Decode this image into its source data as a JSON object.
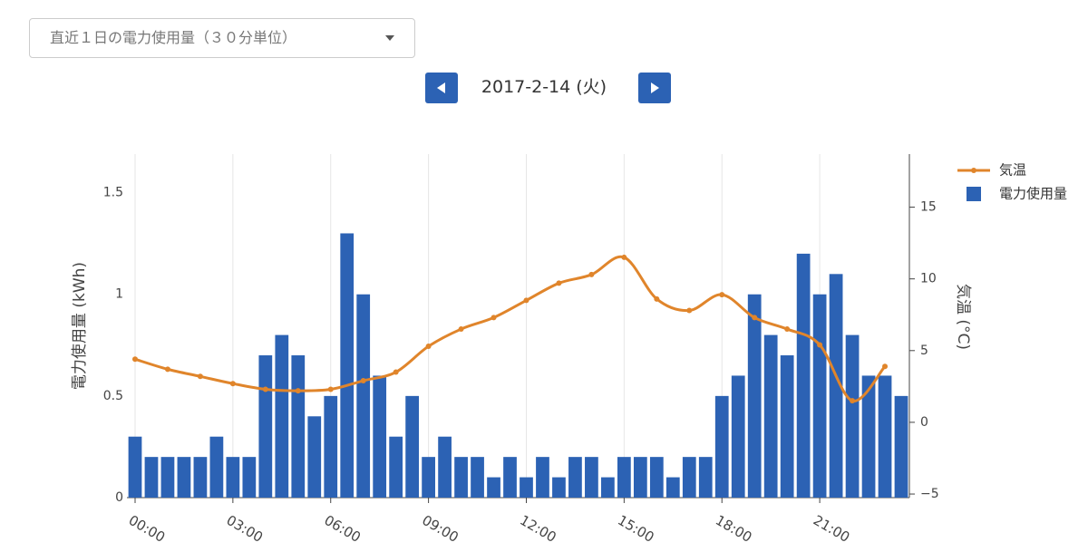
{
  "ui": {
    "dropdown": "直近１日の電力使用量（３０分単位）",
    "date": "2017-2-14 (火)"
  },
  "chart_data": {
    "type": "bar-line",
    "x_axis_ticks_note": null,
    "xlim": [
      -0.25,
      23.75
    ],
    "xticks": [
      {
        "value": 0,
        "label": "00:00"
      },
      {
        "value": 3,
        "label": "03:00"
      },
      {
        "value": 6,
        "label": "06:00"
      },
      {
        "value": 9,
        "label": "09:00"
      },
      {
        "value": 12,
        "label": "12:00"
      },
      {
        "value": 15,
        "label": "15:00"
      },
      {
        "value": 18,
        "label": "18:00"
      },
      {
        "value": 21,
        "label": "21:00"
      }
    ],
    "ylabel": "電力使用量 (kWh)",
    "ylim": [
      0,
      1.69
    ],
    "yticks": [
      0,
      0.5,
      1,
      1.5
    ],
    "y2label": "気温 (°C)",
    "y2lim": [
      -5.25,
      18.7
    ],
    "y2ticks": [
      {
        "value": -5,
        "label": "−5"
      },
      0,
      5,
      10,
      15
    ],
    "xgrid": true,
    "legend": "top-right",
    "series": [
      {
        "name": "気温",
        "type": "line",
        "axis": "y2",
        "color": "#e0852b",
        "x": [
          0,
          1,
          2,
          3,
          4,
          5,
          6,
          7,
          8,
          9,
          10,
          11,
          12,
          13,
          14,
          15,
          16,
          17,
          18,
          19,
          20,
          21,
          22,
          23
        ],
        "values": [
          4.4,
          3.7,
          3.2,
          2.7,
          2.3,
          2.2,
          2.3,
          2.9,
          3.5,
          5.3,
          6.5,
          7.3,
          8.5,
          9.7,
          10.3,
          11.5,
          8.6,
          7.8,
          8.9,
          7.3,
          6.5,
          5.4,
          1.5,
          3.9
        ]
      },
      {
        "name": "電力使用量",
        "type": "bar",
        "axis": "y",
        "color": "#2c62b4",
        "x": [
          0,
          0.5,
          1,
          1.5,
          2,
          2.5,
          3,
          3.5,
          4,
          4.5,
          5,
          5.5,
          6,
          6.5,
          7,
          7.5,
          8,
          8.5,
          9,
          9.5,
          10,
          10.5,
          11,
          11.5,
          12,
          12.5,
          13,
          13.5,
          14,
          14.5,
          15,
          15.5,
          16,
          16.5,
          17,
          17.5,
          18,
          18.5,
          19,
          19.5,
          20,
          20.5,
          21,
          21.5,
          22,
          22.5,
          23,
          23.5
        ],
        "values": [
          0.3,
          0.2,
          0.2,
          0.2,
          0.2,
          0.3,
          0.2,
          0.2,
          0.7,
          0.8,
          0.7,
          0.4,
          0.5,
          1.3,
          1.0,
          0.6,
          0.3,
          0.5,
          0.2,
          0.3,
          0.2,
          0.2,
          0.1,
          0.2,
          0.1,
          0.2,
          0.1,
          0.2,
          0.2,
          0.1,
          0.2,
          0.2,
          0.2,
          0.1,
          0.2,
          0.2,
          0.5,
          0.6,
          1.0,
          0.8,
          0.7,
          1.2,
          1.0,
          1.1,
          0.8,
          0.6,
          0.6,
          0.5
        ]
      }
    ]
  }
}
